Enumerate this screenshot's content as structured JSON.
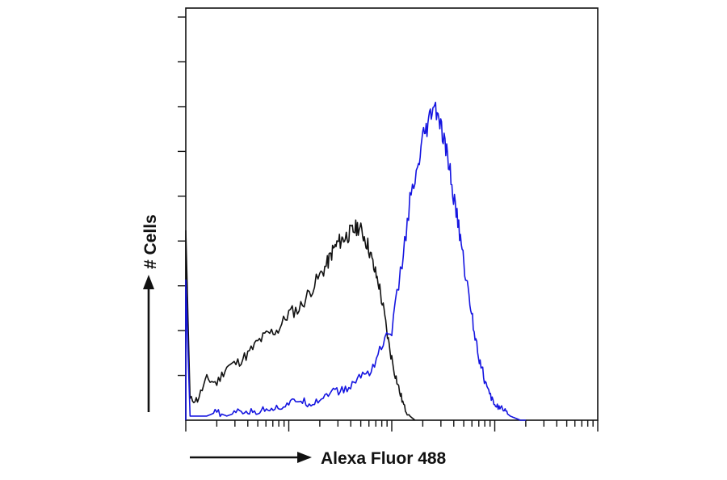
{
  "chart_data": {
    "type": "line",
    "title": "",
    "xlabel": "Alexa Fluor 488",
    "ylabel": "# Cells",
    "x_scale": "log",
    "xlim": [
      1,
      10000
    ],
    "ylim": [
      0,
      1
    ],
    "grid": false,
    "legend": "none",
    "series": [
      {
        "color": "#111111",
        "x": [
          1.0,
          1.1,
          1.3,
          1.6,
          2.0,
          2.5,
          3.2,
          4.0,
          5.0,
          6.3,
          7.9,
          10.0,
          12.6,
          15.8,
          20.0,
          23.7,
          26.6,
          29.9,
          33.5,
          37.6,
          42.2,
          47.3,
          53.1,
          59.6,
          66.8,
          75.0,
          84.1,
          94.4,
          106,
          119,
          133,
          150,
          168
        ],
        "y": [
          0.46,
          0.05,
          0.05,
          0.1,
          0.09,
          0.13,
          0.14,
          0.16,
          0.19,
          0.21,
          0.22,
          0.26,
          0.27,
          0.31,
          0.35,
          0.38,
          0.41,
          0.43,
          0.44,
          0.45,
          0.46,
          0.47,
          0.45,
          0.42,
          0.37,
          0.33,
          0.26,
          0.18,
          0.12,
          0.07,
          0.03,
          0.01,
          0.0
        ]
      },
      {
        "color": "#1515e0",
        "x": [
          1.0,
          1.1,
          1.3,
          1.6,
          2.0,
          2.5,
          3.2,
          4.0,
          5.0,
          6.3,
          7.9,
          10.0,
          12.6,
          15.8,
          20.0,
          25.1,
          31.6,
          39.8,
          50.1,
          63.1,
          79.4,
          100,
          126,
          150,
          178,
          200,
          224,
          251,
          282,
          316,
          355,
          398,
          447,
          501,
          562,
          631,
          708,
          794,
          891,
          1000,
          1122,
          1259,
          1413,
          1585,
          1778,
          2000
        ],
        "y": [
          0.34,
          0.01,
          0.01,
          0.01,
          0.02,
          0.01,
          0.02,
          0.02,
          0.02,
          0.03,
          0.03,
          0.04,
          0.05,
          0.04,
          0.05,
          0.07,
          0.07,
          0.08,
          0.11,
          0.12,
          0.18,
          0.22,
          0.38,
          0.53,
          0.6,
          0.68,
          0.71,
          0.76,
          0.74,
          0.68,
          0.63,
          0.54,
          0.47,
          0.38,
          0.3,
          0.22,
          0.15,
          0.1,
          0.06,
          0.04,
          0.03,
          0.02,
          0.01,
          0.005,
          0.0,
          0.0
        ]
      }
    ]
  }
}
